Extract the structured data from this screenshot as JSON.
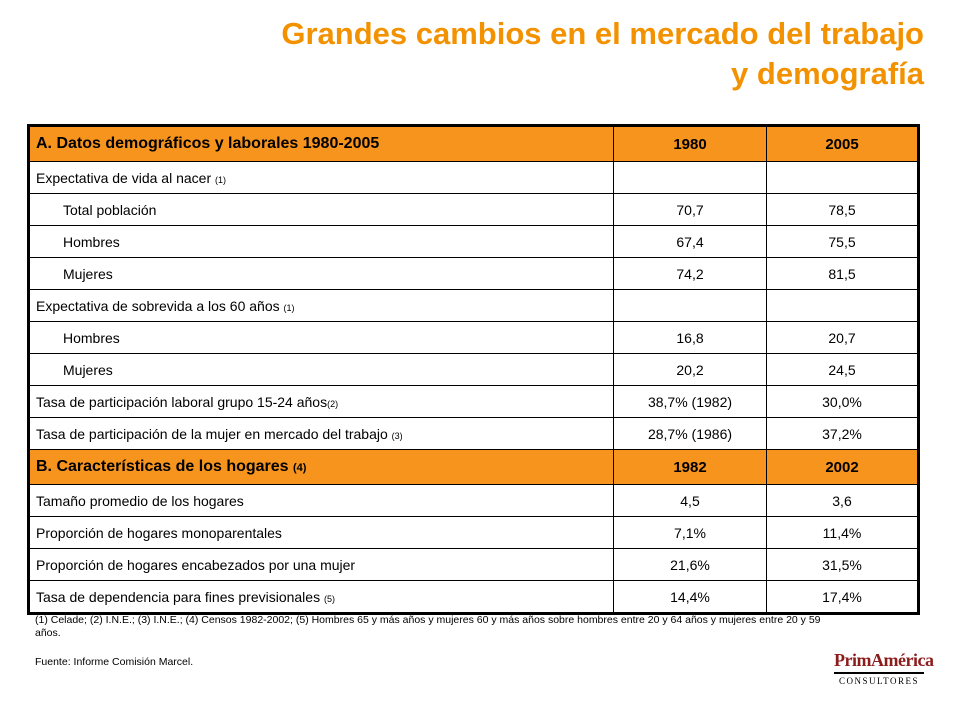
{
  "title": {
    "line1": "Grandes cambios en el mercado del trabajo",
    "line2": "y demografía"
  },
  "table": {
    "section_a": {
      "label": "A. Datos demográficos y laborales 1980-2005",
      "col1": "1980",
      "col2": "2005"
    },
    "rows_a": [
      {
        "label": "Expectativa de vida al nacer ",
        "note": "(1)",
        "v1": "",
        "v2": ""
      },
      {
        "label": "Total población",
        "note": "",
        "v1": "70,7",
        "v2": "78,5"
      },
      {
        "label": "Hombres",
        "note": "",
        "v1": "67,4",
        "v2": "75,5"
      },
      {
        "label": "Mujeres",
        "note": "",
        "v1": "74,2",
        "v2": "81,5"
      },
      {
        "label": "Expectativa de sobrevida a los 60 años ",
        "note": "(1)",
        "v1": "",
        "v2": ""
      },
      {
        "label": "Hombres",
        "note": "",
        "v1": "16,8",
        "v2": "20,7"
      },
      {
        "label": "Mujeres",
        "note": "",
        "v1": "20,2",
        "v2": "24,5"
      },
      {
        "label": "Tasa de participación laboral grupo 15-24 años",
        "note": "(2)",
        "v1": "38,7% (1982)",
        "v2": "30,0%"
      },
      {
        "label": "Tasa de participación de la mujer en mercado del trabajo ",
        "note": "(3)",
        "v1": "28,7% (1986)",
        "v2": "37,2%"
      }
    ],
    "section_b": {
      "label": "B. Características de los hogares ",
      "note": "(4)",
      "col1": "1982",
      "col2": "2002"
    },
    "rows_b": [
      {
        "label": "Tamaño promedio de los hogares",
        "note": "",
        "v1": "4,5",
        "v2": "3,6"
      },
      {
        "label": "Proporción de hogares monoparentales",
        "note": "",
        "v1": "7,1%",
        "v2": "11,4%"
      },
      {
        "label": "Proporción de hogares encabezados por una mujer",
        "note": "",
        "v1": "21,6%",
        "v2": "31,5%"
      },
      {
        "label": "Tasa de dependencia para fines previsionales ",
        "note": "(5)",
        "v1": "14,4%",
        "v2": "17,4%"
      }
    ]
  },
  "notes": "(1) Celade; (2) I.N.E.; (3) I.N.E.; (4) Censos 1982-2002; (5) Hombres 65 y más años y mujeres 60 y más años sobre hombres entre 20 y 64 años y mujeres entre 20 y 59 años.",
  "source": "Fuente: Informe Comisión Marcel.",
  "logo": {
    "brand": "PrimAmérica",
    "sub": "CONSULTORES"
  },
  "colors": {
    "accent": "#f39200",
    "header_fill": "#f7941d",
    "logo_red": "#8c1d1d"
  }
}
